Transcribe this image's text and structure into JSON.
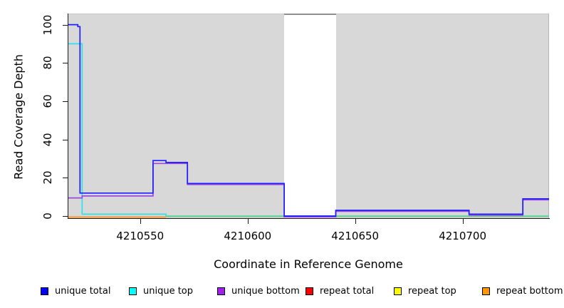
{
  "chart_data": {
    "type": "line",
    "step": true,
    "title": "",
    "xlabel": "Coordinate in Reference Genome",
    "ylabel": "Read Coverage Depth",
    "xlim": [
      4210516.6,
      4210740.2
    ],
    "ylim": [
      -1.1,
      105.8
    ],
    "x_ticks": [
      "4210550",
      "4210600",
      "4210650",
      "4210700"
    ],
    "x_tick_values": [
      4210550,
      4210600,
      4210650,
      4210700
    ],
    "y_ticks": [
      "0",
      "20",
      "40",
      "60",
      "80",
      "100"
    ],
    "y_tick_values": [
      0,
      20,
      40,
      60,
      80,
      100
    ],
    "grid": false,
    "plot_background_color": "#d8d8d8",
    "gap_region": {
      "x_from": 4210617,
      "x_to": 4210641,
      "color": "#ffffff",
      "note": "white band with no shading, coverage drops to 0"
    },
    "legend_position": "bottom",
    "series": [
      {
        "name": "unique total",
        "color": "#0000ff",
        "line_color": "#2020ff",
        "points": [
          [
            4210516.6,
            100
          ],
          [
            4210521,
            100
          ],
          [
            4210521,
            99
          ],
          [
            4210522,
            99
          ],
          [
            4210522,
            12
          ],
          [
            4210556,
            12
          ],
          [
            4210556,
            29
          ],
          [
            4210562,
            29
          ],
          [
            4210562,
            28
          ],
          [
            4210572,
            28
          ],
          [
            4210572,
            17
          ],
          [
            4210617,
            17
          ],
          [
            4210617,
            0
          ],
          [
            4210641,
            0
          ],
          [
            4210641,
            3
          ],
          [
            4210703,
            3
          ],
          [
            4210703,
            1
          ],
          [
            4210728,
            1
          ],
          [
            4210728,
            9
          ],
          [
            4210740.2,
            9
          ]
        ]
      },
      {
        "name": "unique top",
        "color": "#00ffff",
        "line_color": "#2fe2ea",
        "points": [
          [
            4210516.6,
            90
          ],
          [
            4210523,
            90
          ],
          [
            4210523,
            1
          ],
          [
            4210562,
            1
          ],
          [
            4210562,
            0
          ],
          [
            4210740.2,
            0
          ]
        ]
      },
      {
        "name": "unique bottom",
        "color": "#a020f0",
        "line_color": "#9b4ae0",
        "points": [
          [
            4210516.6,
            10
          ],
          [
            4210523,
            10
          ],
          [
            4210523,
            11
          ],
          [
            4210556,
            11
          ],
          [
            4210556,
            28
          ],
          [
            4210572,
            28
          ],
          [
            4210572,
            17
          ],
          [
            4210617,
            17
          ],
          [
            4210617,
            0
          ],
          [
            4210641,
            0
          ],
          [
            4210641,
            3
          ],
          [
            4210703,
            3
          ],
          [
            4210703,
            1
          ],
          [
            4210728,
            1
          ],
          [
            4210728,
            9
          ],
          [
            4210740.2,
            9
          ]
        ]
      },
      {
        "name": "repeat total",
        "color": "#ff0000",
        "line_color": "#ee1111",
        "points": [
          [
            4210516.6,
            0
          ],
          [
            4210562,
            0
          ]
        ]
      },
      {
        "name": "repeat top",
        "color": "#ffff00",
        "line_color": "#f2e22a",
        "points": [
          [
            4210516.6,
            0
          ],
          [
            4210562,
            0
          ]
        ]
      },
      {
        "name": "repeat bottom",
        "color": "#ff9800",
        "line_color": "#ff9428",
        "points": [
          [
            4210516.6,
            0
          ],
          [
            4210562,
            0
          ]
        ]
      }
    ],
    "overlap_zero_line": {
      "color": "#7ccd7c",
      "y": 0,
      "x_from": 4210562,
      "x_to": 4210740.2,
      "note": "pale green line where unique-top and repeat-top zero lines blend right of 4210562"
    }
  },
  "legend": {
    "items": [
      {
        "label": "unique total",
        "color": "#0000ff"
      },
      {
        "label": "unique top",
        "color": "#00ffff"
      },
      {
        "label": "unique bottom",
        "color": "#a020f0"
      },
      {
        "label": "repeat total",
        "color": "#ff0000"
      },
      {
        "label": "repeat top",
        "color": "#ffff00"
      },
      {
        "label": "repeat bottom",
        "color": "#ff9800"
      }
    ]
  }
}
